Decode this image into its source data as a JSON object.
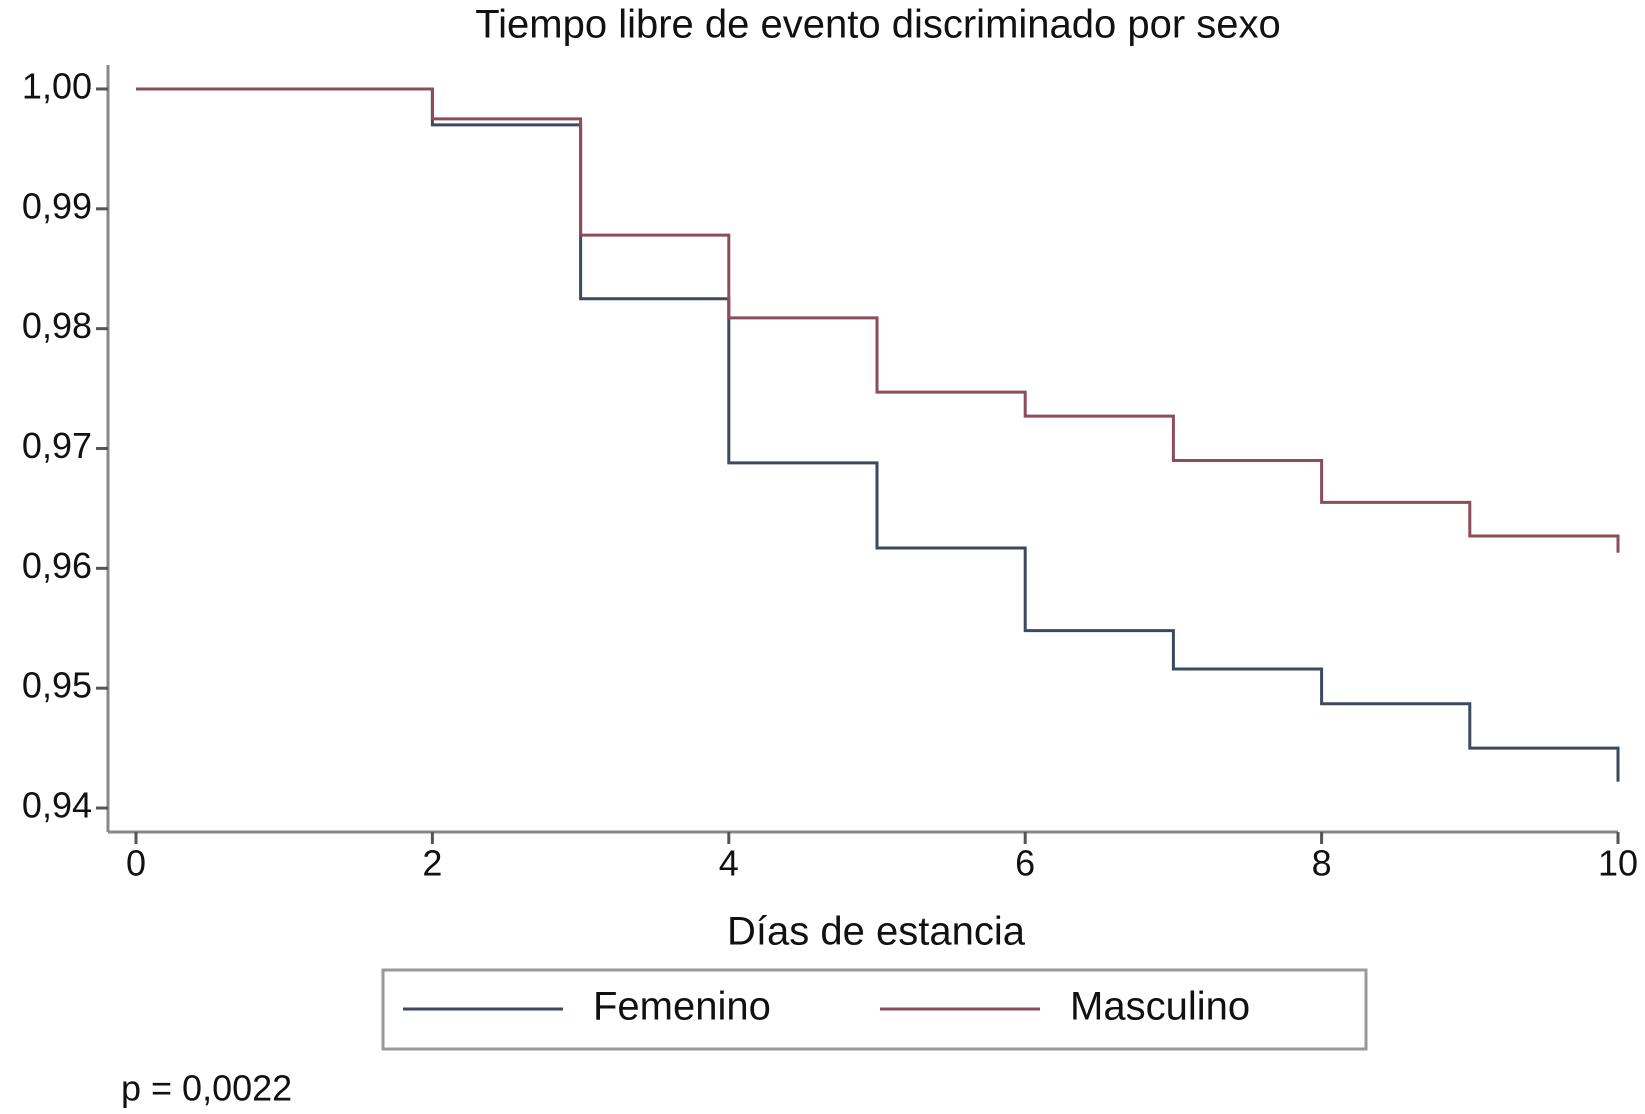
{
  "chart_data": {
    "type": "step",
    "title": "Tiempo libre de evento discriminado por sexo",
    "x_label": "Días de estancia",
    "annotation": "p = 0,0022",
    "x": [
      0,
      2,
      3,
      4,
      5,
      6,
      7,
      8,
      9,
      10
    ],
    "series": [
      {
        "name": "Femenino",
        "color": "#3b4a5f",
        "values": [
          1.0,
          0.997,
          0.9825,
          0.9688,
          0.9617,
          0.9548,
          0.9516,
          0.9487,
          0.945,
          0.9422
        ]
      },
      {
        "name": "Masculino",
        "color": "#8c4d58",
        "values": [
          1.0,
          0.9975,
          0.9878,
          0.9809,
          0.9747,
          0.9727,
          0.969,
          0.9655,
          0.9627,
          0.9613
        ]
      }
    ],
    "xlim": [
      0,
      10
    ],
    "xticks": [
      0,
      2,
      4,
      6,
      8,
      10
    ],
    "ylim": [
      0.938,
      1.002
    ],
    "yticks": [
      {
        "value": 0.94,
        "label": "0,94"
      },
      {
        "value": 0.95,
        "label": "0,95"
      },
      {
        "value": 0.96,
        "label": "0,96"
      },
      {
        "value": 0.97,
        "label": "0,97"
      },
      {
        "value": 0.98,
        "label": "0,98"
      },
      {
        "value": 0.99,
        "label": "0,99"
      },
      {
        "value": 1.0,
        "label": "1,00"
      }
    ],
    "legend": "bottom"
  }
}
